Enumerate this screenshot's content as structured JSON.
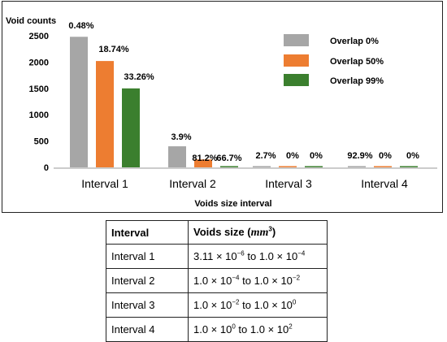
{
  "chart_data": {
    "type": "bar",
    "ylabel": "Void counts",
    "xlabel": "Voids size interval",
    "categories": [
      "Interval 1",
      "Interval 2",
      "Interval 3",
      "Interval 4"
    ],
    "ylim": [
      0,
      2500
    ],
    "yticks": [
      "0",
      "500",
      "1000",
      "1500",
      "2000",
      "2500"
    ],
    "legend_position": "top-right",
    "series": [
      {
        "name": "Overlap 0%",
        "color": "#a6a6a6",
        "values": [
          2480,
          400,
          10,
          8
        ],
        "labels": [
          "0.48%",
          "3.9%",
          "2.7%",
          "92.9%"
        ]
      },
      {
        "name": "Overlap 50%",
        "color": "#ed7d31",
        "values": [
          2020,
          150,
          10,
          8
        ],
        "labels": [
          "18.74%",
          "81.2%",
          "0%",
          "0%"
        ]
      },
      {
        "name": "Overlap 99%",
        "color": "#3b7f2e",
        "values": [
          1500,
          20,
          20,
          15
        ],
        "labels": [
          "33.26%",
          "66.7%",
          "0%",
          "0%"
        ]
      }
    ]
  },
  "table": {
    "header": {
      "interval": "Interval",
      "size": "Voids size",
      "unit": "mm",
      "unit_exp": "3"
    },
    "rows": [
      {
        "interval": "Interval 1",
        "from": "3.11 × 10",
        "from_exp": "−6",
        "to": "1.0 × 10",
        "to_exp": "−4"
      },
      {
        "interval": "Interval 2",
        "from": "1.0 × 10",
        "from_exp": "−4",
        "to": "1.0 × 10",
        "to_exp": "−2"
      },
      {
        "interval": "Interval 3",
        "from": "1.0 × 10",
        "from_exp": "−2",
        "to": "1.0 × 10",
        "to_exp": "0"
      },
      {
        "interval": "Interval 4",
        "from": "1.0 × 10",
        "from_exp": "0",
        "to": "1.0 × 10",
        "to_exp": "2"
      }
    ],
    "connector": "to"
  }
}
